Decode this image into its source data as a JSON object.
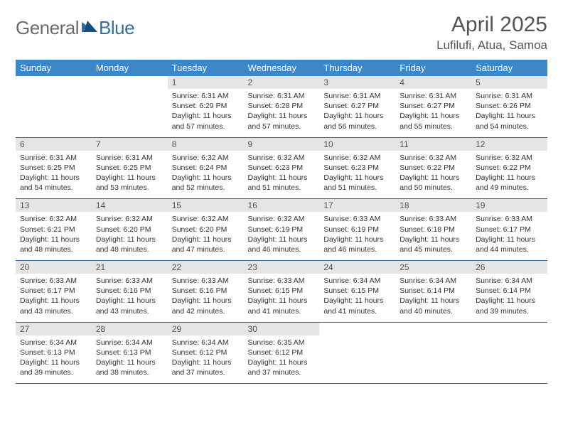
{
  "logo": {
    "general": "General",
    "blue": "Blue"
  },
  "title": {
    "month": "April 2025",
    "location": "Lufilufi, Atua, Samoa"
  },
  "colors": {
    "header_bg": "#3b87c8",
    "header_fg": "#ffffff",
    "daynum_bg": "#e5e5e5",
    "row_divider": "#3b6a97",
    "logo_gray": "#6b6b6b",
    "logo_blue": "#2f6fa8",
    "text": "#333333",
    "background": "#ffffff"
  },
  "typography": {
    "title_fontsize": 30,
    "location_fontsize": 17,
    "dow_fontsize": 13,
    "daynum_fontsize": 12,
    "body_fontsize": 10.5
  },
  "layout": {
    "columns": 7,
    "rows": 5,
    "cell_min_height": 58
  },
  "dow": [
    "Sunday",
    "Monday",
    "Tuesday",
    "Wednesday",
    "Thursday",
    "Friday",
    "Saturday"
  ],
  "weeks": [
    [
      null,
      null,
      {
        "n": "1",
        "sr": "6:31 AM",
        "ss": "6:29 PM",
        "dl": "11 hours and 57 minutes."
      },
      {
        "n": "2",
        "sr": "6:31 AM",
        "ss": "6:28 PM",
        "dl": "11 hours and 57 minutes."
      },
      {
        "n": "3",
        "sr": "6:31 AM",
        "ss": "6:27 PM",
        "dl": "11 hours and 56 minutes."
      },
      {
        "n": "4",
        "sr": "6:31 AM",
        "ss": "6:27 PM",
        "dl": "11 hours and 55 minutes."
      },
      {
        "n": "5",
        "sr": "6:31 AM",
        "ss": "6:26 PM",
        "dl": "11 hours and 54 minutes."
      }
    ],
    [
      {
        "n": "6",
        "sr": "6:31 AM",
        "ss": "6:25 PM",
        "dl": "11 hours and 54 minutes."
      },
      {
        "n": "7",
        "sr": "6:31 AM",
        "ss": "6:25 PM",
        "dl": "11 hours and 53 minutes."
      },
      {
        "n": "8",
        "sr": "6:32 AM",
        "ss": "6:24 PM",
        "dl": "11 hours and 52 minutes."
      },
      {
        "n": "9",
        "sr": "6:32 AM",
        "ss": "6:23 PM",
        "dl": "11 hours and 51 minutes."
      },
      {
        "n": "10",
        "sr": "6:32 AM",
        "ss": "6:23 PM",
        "dl": "11 hours and 51 minutes."
      },
      {
        "n": "11",
        "sr": "6:32 AM",
        "ss": "6:22 PM",
        "dl": "11 hours and 50 minutes."
      },
      {
        "n": "12",
        "sr": "6:32 AM",
        "ss": "6:22 PM",
        "dl": "11 hours and 49 minutes."
      }
    ],
    [
      {
        "n": "13",
        "sr": "6:32 AM",
        "ss": "6:21 PM",
        "dl": "11 hours and 48 minutes."
      },
      {
        "n": "14",
        "sr": "6:32 AM",
        "ss": "6:20 PM",
        "dl": "11 hours and 48 minutes."
      },
      {
        "n": "15",
        "sr": "6:32 AM",
        "ss": "6:20 PM",
        "dl": "11 hours and 47 minutes."
      },
      {
        "n": "16",
        "sr": "6:32 AM",
        "ss": "6:19 PM",
        "dl": "11 hours and 46 minutes."
      },
      {
        "n": "17",
        "sr": "6:33 AM",
        "ss": "6:19 PM",
        "dl": "11 hours and 46 minutes."
      },
      {
        "n": "18",
        "sr": "6:33 AM",
        "ss": "6:18 PM",
        "dl": "11 hours and 45 minutes."
      },
      {
        "n": "19",
        "sr": "6:33 AM",
        "ss": "6:17 PM",
        "dl": "11 hours and 44 minutes."
      }
    ],
    [
      {
        "n": "20",
        "sr": "6:33 AM",
        "ss": "6:17 PM",
        "dl": "11 hours and 43 minutes."
      },
      {
        "n": "21",
        "sr": "6:33 AM",
        "ss": "6:16 PM",
        "dl": "11 hours and 43 minutes."
      },
      {
        "n": "22",
        "sr": "6:33 AM",
        "ss": "6:16 PM",
        "dl": "11 hours and 42 minutes."
      },
      {
        "n": "23",
        "sr": "6:33 AM",
        "ss": "6:15 PM",
        "dl": "11 hours and 41 minutes."
      },
      {
        "n": "24",
        "sr": "6:34 AM",
        "ss": "6:15 PM",
        "dl": "11 hours and 41 minutes."
      },
      {
        "n": "25",
        "sr": "6:34 AM",
        "ss": "6:14 PM",
        "dl": "11 hours and 40 minutes."
      },
      {
        "n": "26",
        "sr": "6:34 AM",
        "ss": "6:14 PM",
        "dl": "11 hours and 39 minutes."
      }
    ],
    [
      {
        "n": "27",
        "sr": "6:34 AM",
        "ss": "6:13 PM",
        "dl": "11 hours and 39 minutes."
      },
      {
        "n": "28",
        "sr": "6:34 AM",
        "ss": "6:13 PM",
        "dl": "11 hours and 38 minutes."
      },
      {
        "n": "29",
        "sr": "6:34 AM",
        "ss": "6:12 PM",
        "dl": "11 hours and 37 minutes."
      },
      {
        "n": "30",
        "sr": "6:35 AM",
        "ss": "6:12 PM",
        "dl": "11 hours and 37 minutes."
      },
      null,
      null,
      null
    ]
  ],
  "labels": {
    "sunrise": "Sunrise:",
    "sunset": "Sunset:",
    "daylight": "Daylight:"
  }
}
